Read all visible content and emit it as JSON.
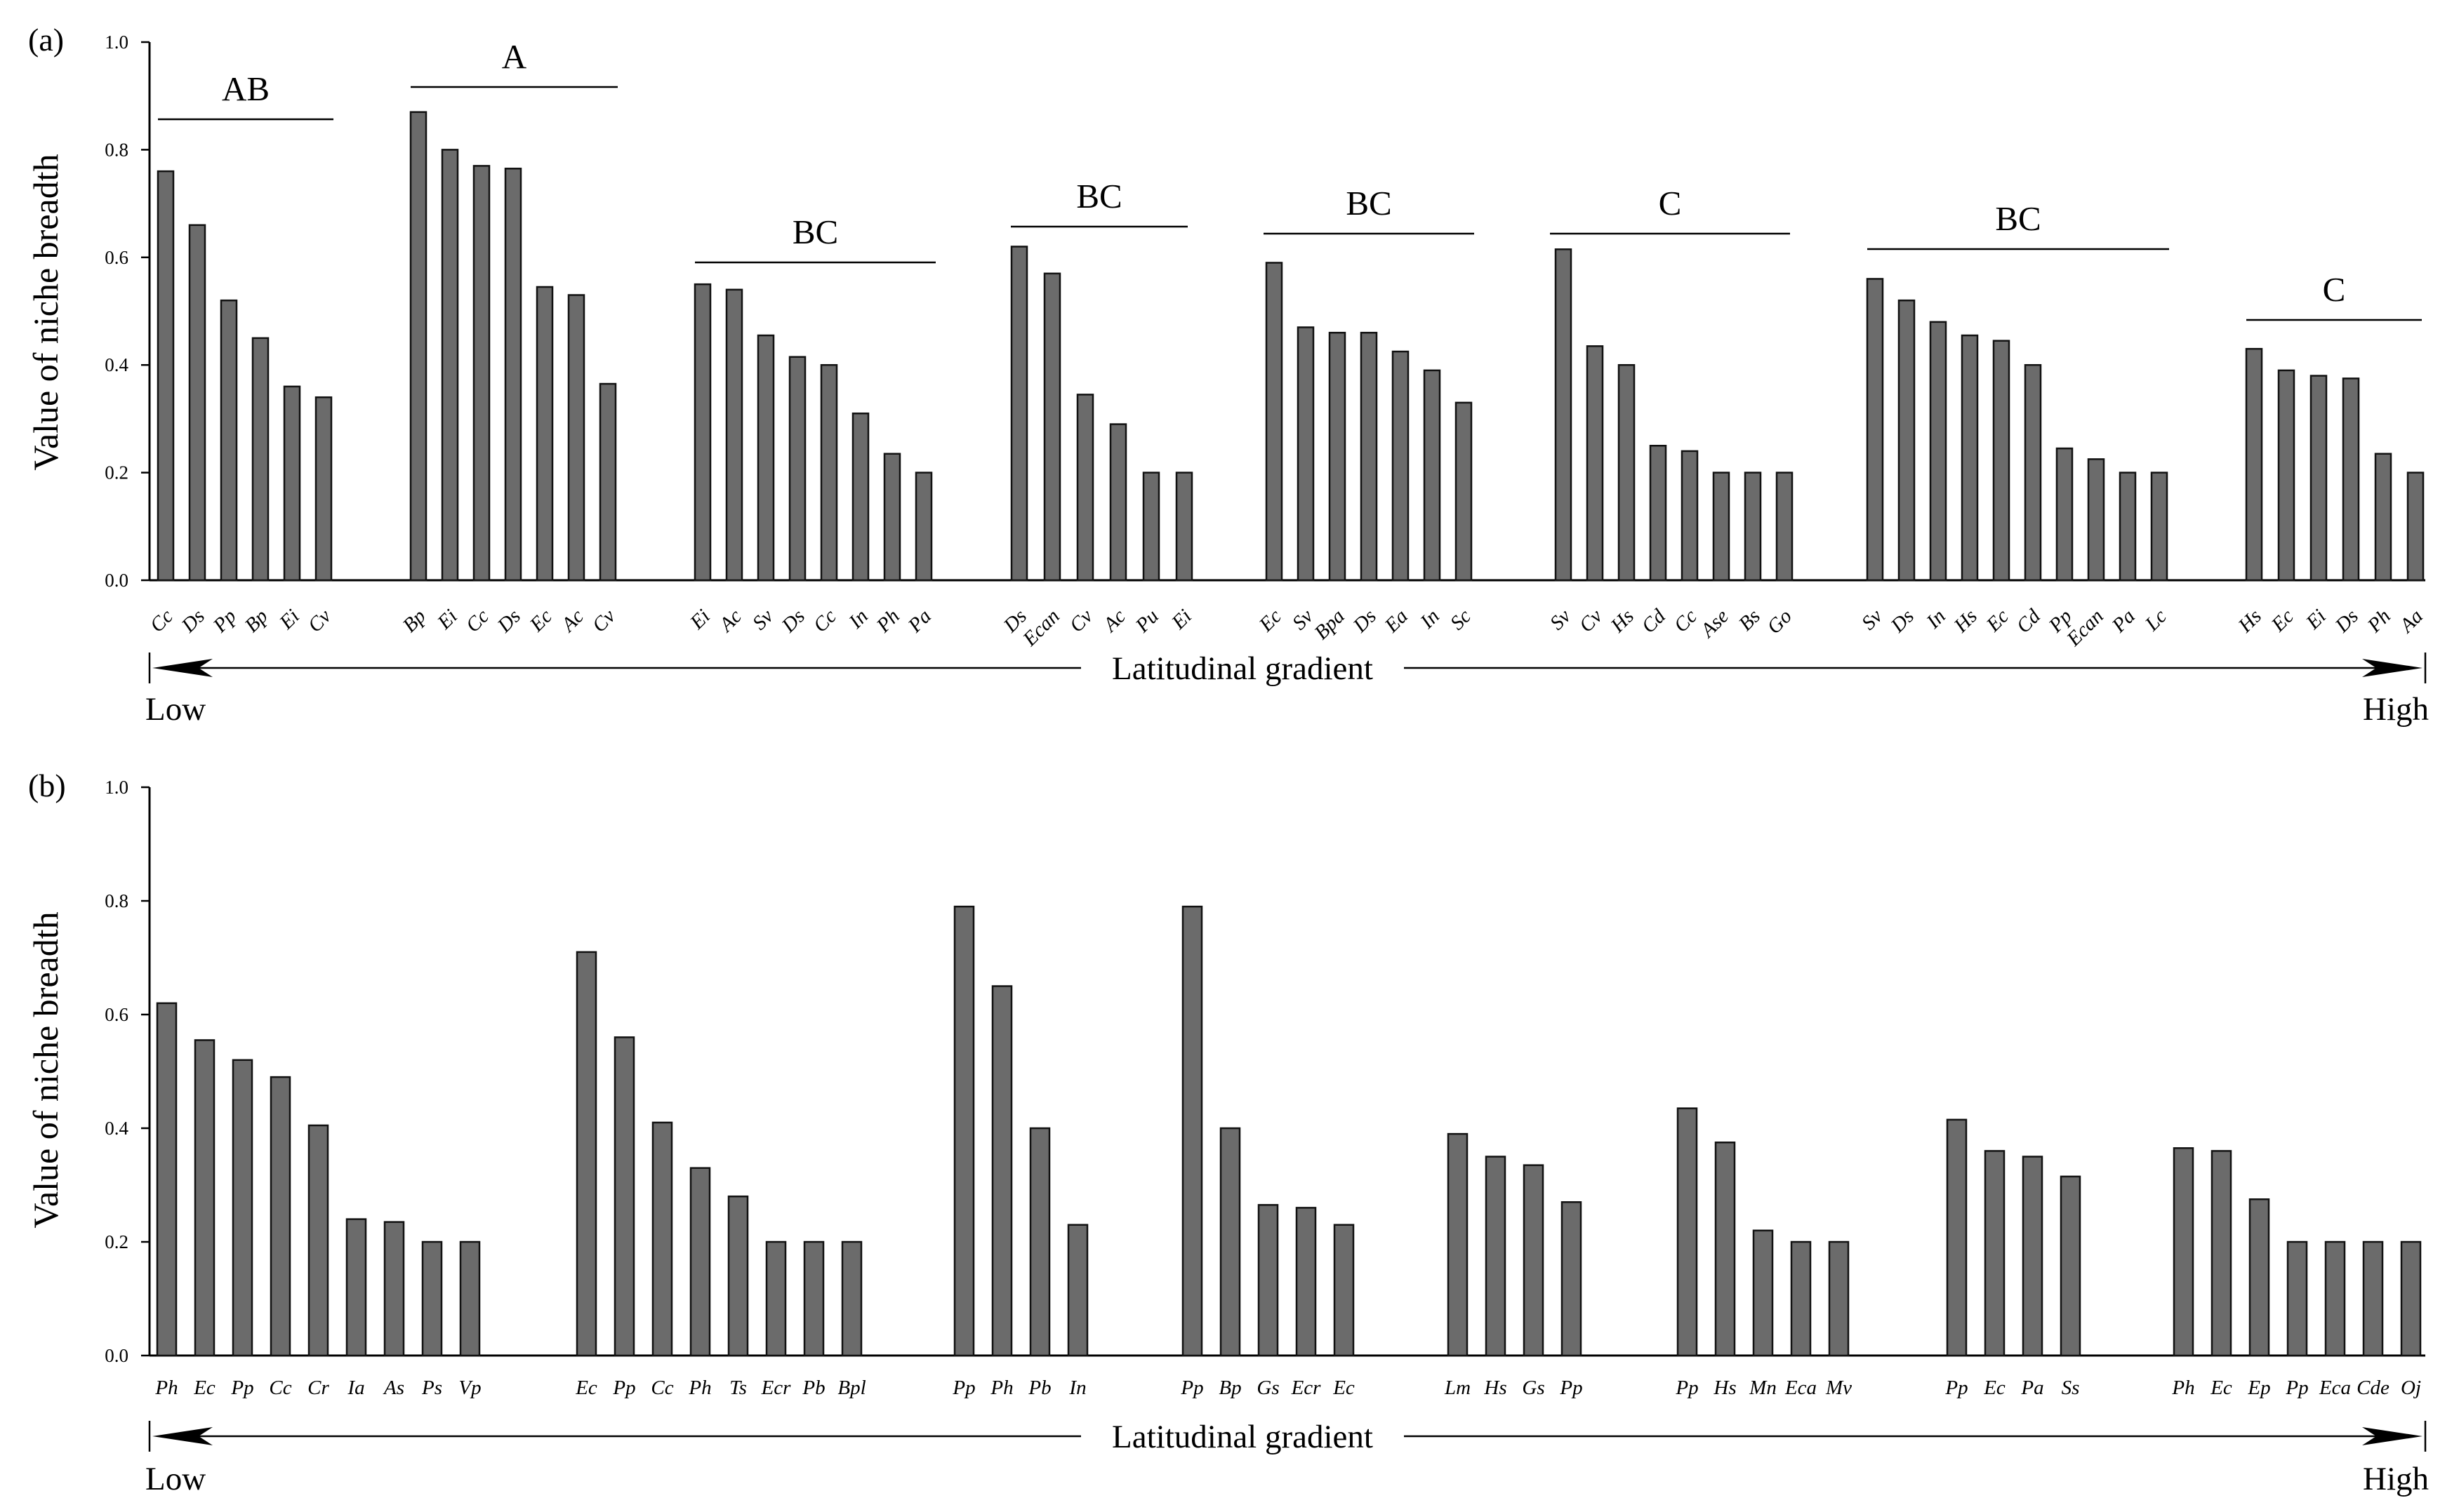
{
  "chart_data": [
    {
      "type": "bar",
      "panel_label": "(a)",
      "ylabel": "Value of niche breadth",
      "ylim": [
        0,
        1.0
      ],
      "yticks": [
        "0.0",
        "0.2",
        "0.4",
        "0.6",
        "0.8",
        "1.0"
      ],
      "gradient_label": "Latitudinal gradient",
      "low_label": "Low",
      "high_label": "High",
      "groups": [
        {
          "letter": "AB",
          "categories": [
            "Cc",
            "Ds",
            "Pp",
            "Bp",
            "Ei",
            "Cv"
          ],
          "values": [
            0.76,
            0.66,
            0.52,
            0.45,
            0.36,
            0.34
          ]
        },
        {
          "letter": "A",
          "categories": [
            "Bp",
            "Ei",
            "Cc",
            "Ds",
            "Ec",
            "Ac",
            "Cv"
          ],
          "values": [
            0.87,
            0.8,
            0.77,
            0.765,
            0.545,
            0.53,
            0.365
          ]
        },
        {
          "letter": "BC",
          "categories": [
            "Ei",
            "Ac",
            "Sv",
            "Ds",
            "Cc",
            "In",
            "Ph",
            "Pa"
          ],
          "values": [
            0.55,
            0.54,
            0.455,
            0.415,
            0.4,
            0.31,
            0.235,
            0.2
          ]
        },
        {
          "letter": "BC",
          "categories": [
            "Ds",
            "Ecan",
            "Cv",
            "Ac",
            "Pu",
            "Ei"
          ],
          "values": [
            0.62,
            0.57,
            0.345,
            0.29,
            0.2,
            0.2
          ]
        },
        {
          "letter": "BC",
          "categories": [
            "Ec",
            "Sv",
            "Bpa",
            "Ds",
            "Ea",
            "In",
            "Sc"
          ],
          "values": [
            0.59,
            0.47,
            0.46,
            0.46,
            0.425,
            0.39,
            0.33
          ]
        },
        {
          "letter": "C",
          "categories": [
            "Sv",
            "Cv",
            "Hs",
            "Cd",
            "Cc",
            "Ase",
            "Bs",
            "Go"
          ],
          "values": [
            0.615,
            0.435,
            0.4,
            0.25,
            0.24,
            0.2,
            0.2,
            0.2
          ]
        },
        {
          "letter": "BC",
          "categories": [
            "Sv",
            "Ds",
            "In",
            "Hs",
            "Ec",
            "Cd",
            "Pp",
            "Ecan",
            "Pa",
            "Lc"
          ],
          "values": [
            0.56,
            0.52,
            0.48,
            0.455,
            0.445,
            0.4,
            0.245,
            0.225,
            0.2,
            0.2
          ]
        },
        {
          "letter": "C",
          "categories": [
            "Hs",
            "Ec",
            "Ei",
            "Ds",
            "Ph",
            "Aa"
          ],
          "values": [
            0.43,
            0.39,
            0.38,
            0.375,
            0.235,
            0.2
          ]
        }
      ]
    },
    {
      "type": "bar",
      "panel_label": "(b)",
      "ylabel": "Value of niche breadth",
      "ylim": [
        0,
        1.0
      ],
      "yticks": [
        "0.0",
        "0.2",
        "0.4",
        "0.6",
        "0.8",
        "1.0"
      ],
      "gradient_label": "Latitudinal gradient",
      "low_label": "Low",
      "high_label": "High",
      "groups": [
        {
          "categories": [
            "Ph",
            "Ec",
            "Pp",
            "Cc",
            "Cr",
            "Ia",
            "As",
            "Ps",
            "Vp"
          ],
          "values": [
            0.62,
            0.555,
            0.52,
            0.49,
            0.405,
            0.24,
            0.235,
            0.2,
            0.2
          ]
        },
        {
          "categories": [
            "Ec",
            "Pp",
            "Cc",
            "Ph",
            "Ts",
            "Ecr",
            "Pb",
            "Bpl"
          ],
          "values": [
            0.71,
            0.56,
            0.41,
            0.33,
            0.28,
            0.2,
            0.2,
            0.2
          ]
        },
        {
          "categories": [
            "Pp",
            "Ph",
            "Pb",
            "In"
          ],
          "values": [
            0.79,
            0.65,
            0.4,
            0.23
          ]
        },
        {
          "categories": [
            "Pp",
            "Bp",
            "Gs",
            "Ecr",
            "Ec"
          ],
          "values": [
            0.79,
            0.4,
            0.265,
            0.26,
            0.23
          ]
        },
        {
          "categories": [
            "Lm",
            "Hs",
            "Gs",
            "Pp"
          ],
          "values": [
            0.39,
            0.35,
            0.335,
            0.27
          ]
        },
        {
          "categories": [
            "Pp",
            "Hs",
            "Mn",
            "Eca",
            "Mv"
          ],
          "values": [
            0.435,
            0.375,
            0.22,
            0.2,
            0.2
          ]
        },
        {
          "categories": [
            "Pp",
            "Ec",
            "Pa",
            "Ss"
          ],
          "values": [
            0.415,
            0.36,
            0.35,
            0.315
          ]
        },
        {
          "categories": [
            "Ph",
            "Ec",
            "Ep",
            "Pp",
            "Eca",
            "Cde",
            "Oj"
          ],
          "values": [
            0.365,
            0.36,
            0.275,
            0.2,
            0.2,
            0.2,
            0.2
          ]
        }
      ]
    }
  ]
}
